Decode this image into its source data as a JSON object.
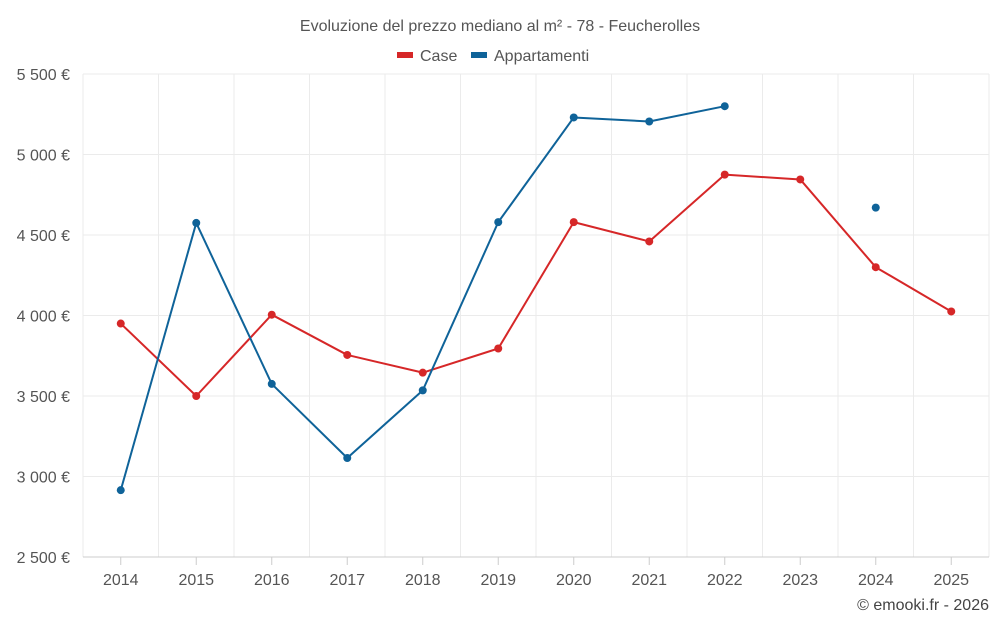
{
  "chart_data": {
    "type": "line",
    "title": "Evoluzione del prezzo mediano al m² - 78 - Feucherolles",
    "xlabel": "",
    "ylabel": "",
    "categories": [
      "2014",
      "2015",
      "2016",
      "2017",
      "2018",
      "2019",
      "2020",
      "2021",
      "2022",
      "2023",
      "2024",
      "2025"
    ],
    "ylim": [
      2500,
      5500
    ],
    "yticks": [
      2500,
      3000,
      3500,
      4000,
      4500,
      5000,
      5500
    ],
    "ytick_labels": [
      "2 500 €",
      "3 000 €",
      "3 500 €",
      "4 000 €",
      "4 500 €",
      "5 000 €",
      "5 500 €"
    ],
    "grid": true,
    "legend_position": "top-center",
    "series": [
      {
        "name": "Case",
        "color": "#d62728",
        "values": [
          3950,
          3500,
          4005,
          3755,
          3645,
          3795,
          4580,
          4460,
          4875,
          4845,
          4300,
          4025
        ]
      },
      {
        "name": "Appartamenti",
        "color": "#0f6399",
        "values": [
          2915,
          4575,
          3575,
          3115,
          3535,
          4580,
          5230,
          5205,
          5300,
          null,
          4670,
          null
        ]
      }
    ],
    "credit": "© emooki.fr - 2026"
  }
}
